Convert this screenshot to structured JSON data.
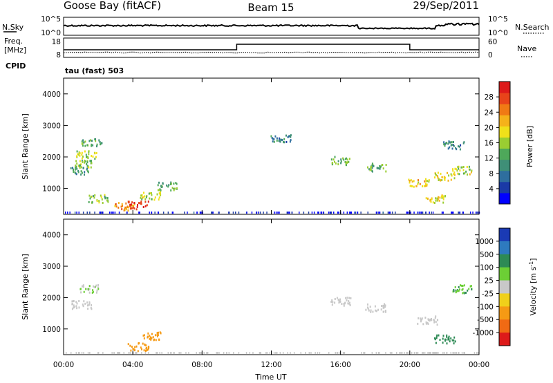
{
  "header": {
    "station": "Goose Bay (fitACF)",
    "beam": "Beam 15",
    "date": "29/Sep/2011"
  },
  "noise_panel": {
    "left_label": "N.Sky",
    "right_label": "N.Search",
    "left_ticks": [
      "10^5",
      "10^0"
    ],
    "right_ticks": [
      "10^5",
      "10^0"
    ]
  },
  "freq_panel": {
    "left_label_line1": "Freq.",
    "left_label_line2": "[MHz]",
    "right_label": "Nave",
    "left_ticks": [
      "18",
      "8"
    ],
    "right_ticks": [
      "60",
      "0"
    ],
    "cpid_label": "CPID",
    "cpid_text": "tau (fast) 503"
  },
  "chart_data": [
    {
      "type": "heatmap",
      "title": "",
      "xlabel": "",
      "ylabel": "Slant Range [km]",
      "x_range": [
        "00:00",
        "00:00"
      ],
      "ylim": [
        180,
        4500
      ],
      "y_ticks": [
        "1000",
        "2000",
        "3000",
        "4000"
      ],
      "colorbar": {
        "label": "Power [dB]",
        "ticks": [
          "4",
          "8",
          "12",
          "16",
          "20",
          "24",
          "28"
        ],
        "colors": [
          "#0000ff",
          "#1a3aa6",
          "#2e6e9e",
          "#3f8f77",
          "#4ea85a",
          "#9acd32",
          "#f0e01a",
          "#f5b21a",
          "#f07a14",
          "#e8441a",
          "#dd1a1a"
        ]
      },
      "series": [
        {
          "name": "",
          "points": [
            {
              "t": 0.9,
              "r": 1600,
              "v": 10
            },
            {
              "t": 1.0,
              "r": 1800,
              "v": 14
            },
            {
              "t": 1.3,
              "r": 2100,
              "v": 16
            },
            {
              "t": 1.6,
              "r": 2500,
              "v": 12
            },
            {
              "t": 2.0,
              "r": 700,
              "v": 14
            },
            {
              "t": 3.5,
              "r": 450,
              "v": 22
            },
            {
              "t": 4.3,
              "r": 500,
              "v": 28
            },
            {
              "t": 5.0,
              "r": 800,
              "v": 16
            },
            {
              "t": 6.0,
              "r": 1100,
              "v": 12
            },
            {
              "t": 12.5,
              "r": 2600,
              "v": 8
            },
            {
              "t": 16.0,
              "r": 1900,
              "v": 12
            },
            {
              "t": 18.0,
              "r": 1700,
              "v": 12
            },
            {
              "t": 20.5,
              "r": 1200,
              "v": 20
            },
            {
              "t": 22.0,
              "r": 1400,
              "v": 18
            },
            {
              "t": 23.0,
              "r": 1600,
              "v": 16
            },
            {
              "t": 21.5,
              "r": 700,
              "v": 18
            },
            {
              "t": 22.5,
              "r": 2400,
              "v": 8
            }
          ]
        }
      ]
    },
    {
      "type": "heatmap",
      "title": "",
      "xlabel": "Time UT",
      "ylabel": "Slant Range [km]",
      "x_ticks": [
        "00:00",
        "04:00",
        "08:00",
        "12:00",
        "16:00",
        "20:00",
        "00:00"
      ],
      "ylim": [
        180,
        4500
      ],
      "y_ticks": [
        "1000",
        "2000",
        "3000",
        "4000"
      ],
      "colorbar": {
        "label": "Velocity [m s^-1]",
        "ticks": [
          "1000",
          "500",
          "100",
          "25",
          "-25",
          "-100",
          "-500",
          "-1000"
        ],
        "colors": [
          "#1a3ab4",
          "#2e7abf",
          "#2d8a55",
          "#6ccf35",
          "#c8c8c8",
          "#f0d01a",
          "#f59a14",
          "#f06a14",
          "#dd1a1a"
        ]
      },
      "series": [
        {
          "name": "",
          "points": [
            {
              "t": 1.0,
              "r": 1800,
              "v": 0
            },
            {
              "t": 1.4,
              "r": 2300,
              "v": 20
            },
            {
              "t": 4.3,
              "r": 450,
              "v": -200
            },
            {
              "t": 5.0,
              "r": 800,
              "v": -100
            },
            {
              "t": 16.0,
              "r": 1900,
              "v": 0
            },
            {
              "t": 18.0,
              "r": 1700,
              "v": 0
            },
            {
              "t": 21.0,
              "r": 1300,
              "v": 0
            },
            {
              "t": 22.0,
              "r": 700,
              "v": 100
            },
            {
              "t": 23.0,
              "r": 2300,
              "v": 50
            }
          ]
        }
      ]
    }
  ]
}
